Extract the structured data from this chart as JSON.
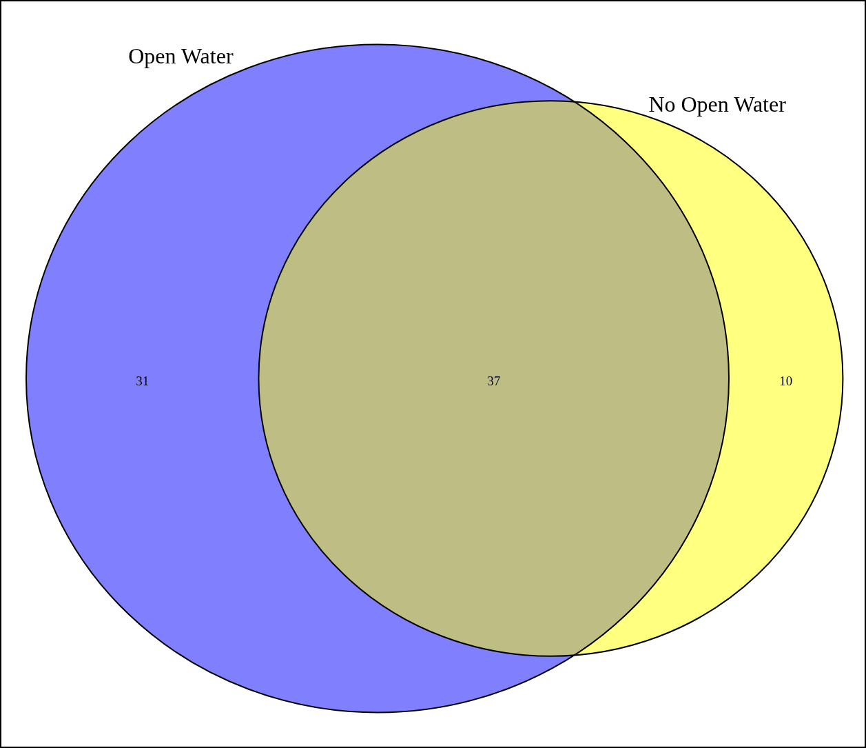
{
  "chart_data": {
    "type": "other",
    "categories": [
      null,
      null,
      null
    ],
    "values": [
      31,
      37,
      10
    ],
    "colors": [
      "#8080ff",
      "#bebe84",
      "#ffff80"
    ],
    "data_labels": true,
    "annotations": [
      "Open Water",
      "No Open Water"
    ]
  }
}
